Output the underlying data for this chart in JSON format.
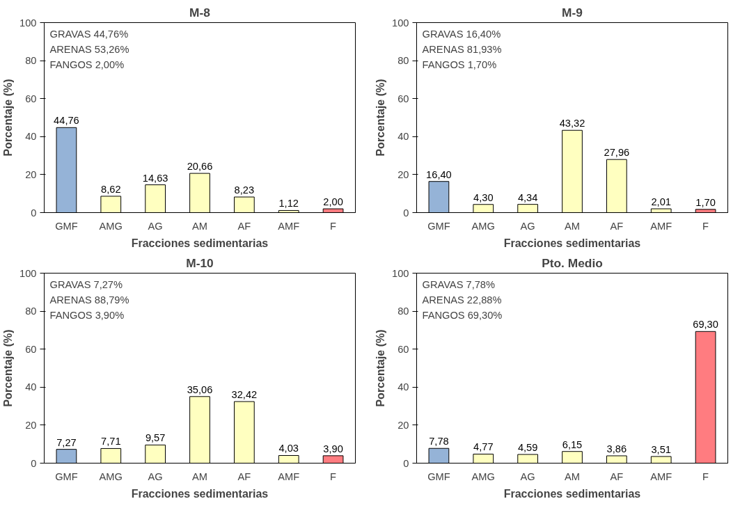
{
  "chart_data": [
    {
      "type": "bar",
      "title": "M-8",
      "xlabel": "Fracciones sedimentarias",
      "ylabel": "Porcentaje (%)",
      "categories": [
        "GMF",
        "AMG",
        "AG",
        "AM",
        "AF",
        "AMF",
        "F"
      ],
      "values": [
        44.76,
        8.62,
        14.63,
        20.66,
        8.23,
        1.12,
        2.0
      ],
      "value_labels": [
        "44,76",
        "8,62",
        "14,63",
        "20,66",
        "8,23",
        "1,12",
        "2,00"
      ],
      "colors": [
        "#95b3d7",
        "#ffffc0",
        "#ffffc0",
        "#ffffc0",
        "#ffffc0",
        "#ffffc0",
        "#ff7c80"
      ],
      "ylim": [
        0,
        100
      ],
      "yticks": [
        0,
        20,
        40,
        60,
        80,
        100
      ],
      "annotations": [
        "GRAVAS 44,76%",
        "ARENAS 53,26%",
        "FANGOS 2,00%"
      ]
    },
    {
      "type": "bar",
      "title": "M-9",
      "xlabel": "Fracciones sedimentarias",
      "ylabel": "Porcentaje (%)",
      "categories": [
        "GMF",
        "AMG",
        "AG",
        "AM",
        "AF",
        "AMF",
        "F"
      ],
      "values": [
        16.4,
        4.3,
        4.34,
        43.32,
        27.96,
        2.01,
        1.7
      ],
      "value_labels": [
        "16,40",
        "4,30",
        "4,34",
        "43,32",
        "27,96",
        "2,01",
        "1,70"
      ],
      "colors": [
        "#95b3d7",
        "#ffffc0",
        "#ffffc0",
        "#ffffc0",
        "#ffffc0",
        "#ffffc0",
        "#ff7c80"
      ],
      "ylim": [
        0,
        100
      ],
      "yticks": [
        0,
        20,
        40,
        60,
        80,
        100
      ],
      "annotations": [
        "GRAVAS 16,40%",
        "ARENAS 81,93%",
        "FANGOS 1,70%"
      ]
    },
    {
      "type": "bar",
      "title": "M-10",
      "xlabel": "Fracciones sedimentarias",
      "ylabel": "Porcentaje (%)",
      "categories": [
        "GMF",
        "AMG",
        "AG",
        "AM",
        "AF",
        "AMF",
        "F"
      ],
      "values": [
        7.27,
        7.71,
        9.57,
        35.06,
        32.42,
        4.03,
        3.9
      ],
      "value_labels": [
        "7,27",
        "7,71",
        "9,57",
        "35,06",
        "32,42",
        "4,03",
        "3,90"
      ],
      "colors": [
        "#95b3d7",
        "#ffffc0",
        "#ffffc0",
        "#ffffc0",
        "#ffffc0",
        "#ffffc0",
        "#ff7c80"
      ],
      "ylim": [
        0,
        100
      ],
      "yticks": [
        0,
        20,
        40,
        60,
        80,
        100
      ],
      "annotations": [
        "GRAVAS 7,27%",
        "ARENAS 88,79%",
        "FANGOS 3,90%"
      ]
    },
    {
      "type": "bar",
      "title": "Pto. Medio",
      "xlabel": "Fracciones sedimentarias",
      "ylabel": "Porcentaje (%)",
      "categories": [
        "GMF",
        "AMG",
        "AG",
        "AM",
        "AF",
        "AMF",
        "F"
      ],
      "values": [
        7.78,
        4.77,
        4.59,
        6.15,
        3.86,
        3.51,
        69.3
      ],
      "value_labels": [
        "7,78",
        "4,77",
        "4,59",
        "6,15",
        "3,86",
        "3,51",
        "69,30"
      ],
      "colors": [
        "#95b3d7",
        "#ffffc0",
        "#ffffc0",
        "#ffffc0",
        "#ffffc0",
        "#ffffc0",
        "#ff7c80"
      ],
      "ylim": [
        0,
        100
      ],
      "yticks": [
        0,
        20,
        40,
        60,
        80,
        100
      ],
      "annotations": [
        "GRAVAS 7,78%",
        "ARENAS 22,88%",
        "FANGOS 69,30%"
      ]
    }
  ]
}
